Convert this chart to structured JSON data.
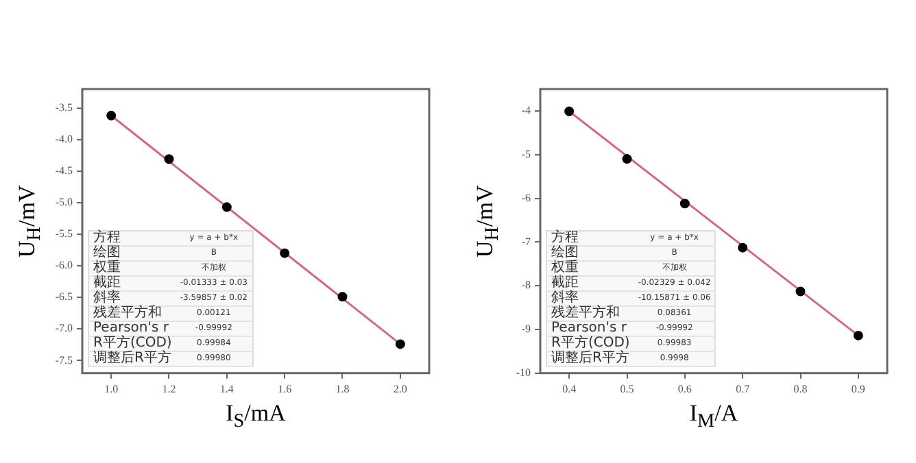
{
  "chart_data": [
    {
      "type": "scatter",
      "xlabel": "I$_{S}$/mA",
      "ylabel": "U$_{H}$/mV",
      "x": [
        1.0,
        1.2,
        1.4,
        1.6,
        1.8,
        2.0
      ],
      "series": [
        {
          "color": "#000000",
          "marker": "circle",
          "values": [
            -3.62,
            -4.31,
            -5.07,
            -5.8,
            -6.49,
            -7.24
          ]
        },
        {
          "type": "line",
          "marker": "none",
          "color": "#d06a80",
          "x": [
            1.0,
            2.0
          ],
          "values": [
            -3.62,
            -7.24
          ]
        }
      ],
      "xlim": [
        0.9,
        2.1
      ],
      "xticks": [
        {
          "value": 1.0,
          "label": "1.0"
        },
        1.2,
        1.4,
        1.6,
        1.8,
        {
          "value": 2.0,
          "label": "2.0"
        }
      ],
      "ylim": [
        -7.7,
        -3.2
      ],
      "yticks": [
        -7.5,
        {
          "value": -7.0,
          "label": "-7.0"
        },
        -6.5,
        {
          "value": -6.0,
          "label": "-6.0"
        },
        -5.5,
        {
          "value": -5.0,
          "label": "-5.0"
        },
        -4.5,
        {
          "value": -4.0,
          "label": "-4.0"
        },
        -3.5
      ],
      "grid": false,
      "legend": false,
      "annotations": [
        "方程",
        "y = a + b*x",
        "绘图",
        "B",
        "权重",
        "不加权",
        "截距",
        "-0.01333 ± 0.03",
        "斜率",
        "-3.59857 ± 0.02",
        "残差平方和",
        "0.00121",
        "Pearson's r",
        "-0.99992",
        "R平方(COD)",
        "0.99984",
        "调整后R平方",
        "0.99980"
      ]
    },
    {
      "type": "scatter",
      "xlabel": "I$_{M}$/A",
      "ylabel": "U$_{H}$/mV",
      "x": [
        0.4,
        0.5,
        0.6,
        0.7,
        0.8,
        0.9
      ],
      "series": [
        {
          "color": "#000000",
          "marker": "circle",
          "values": [
            -4.01,
            -5.1,
            -6.12,
            -7.13,
            -8.13,
            -9.14
          ]
        },
        {
          "type": "line",
          "marker": "none",
          "color": "#d06a80",
          "x": [
            0.4,
            0.9
          ],
          "values": [
            -4.01,
            -9.14
          ]
        }
      ],
      "xlim": [
        0.35,
        0.95
      ],
      "xticks": [
        0.4,
        0.5,
        0.6,
        0.7,
        0.8,
        0.9
      ],
      "ylim": [
        -10,
        -3.5
      ],
      "yticks": [
        -10,
        -9,
        -8,
        -7,
        -6,
        -5,
        -4
      ],
      "grid": false,
      "legend": false,
      "annotations": [
        "方程",
        "y = a + b*x",
        "绘图",
        "B",
        "权重",
        "不加权",
        "截距",
        "-0.02329 ± 0.042",
        "斜率",
        "-10.15871 ± 0.06",
        "残差平方和",
        "0.08361",
        "Pearson's r",
        "-0.99992",
        "R平方(COD)",
        "0.99983",
        "调整后R平方",
        "0.9998"
      ]
    }
  ]
}
